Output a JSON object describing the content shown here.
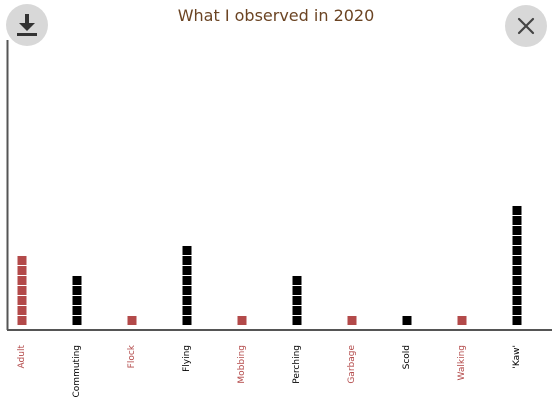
{
  "header": {
    "title": "What I observed in 2020",
    "download_icon": "download-icon",
    "close_icon": "close-icon"
  },
  "colors": {
    "title": "#6b4423",
    "accent": "#b34a4a",
    "dark": "#000000",
    "axis": "#555555"
  },
  "chart_data": {
    "type": "bar",
    "categories": [
      "Adult",
      "Commuting",
      "Flock",
      "Flying",
      "Mobbing",
      "Perching",
      "Garbage",
      "Scold",
      "Walking",
      "'Kaw'"
    ],
    "values": [
      7,
      5,
      1,
      8,
      1,
      5,
      1,
      1,
      1,
      12
    ],
    "category_colors": [
      "#b34a4a",
      "#000000",
      "#b34a4a",
      "#000000",
      "#b34a4a",
      "#000000",
      "#b34a4a",
      "#000000",
      "#b34a4a",
      "#000000"
    ],
    "title": "What I observed in 2020",
    "xlabel": "",
    "ylabel": ""
  }
}
